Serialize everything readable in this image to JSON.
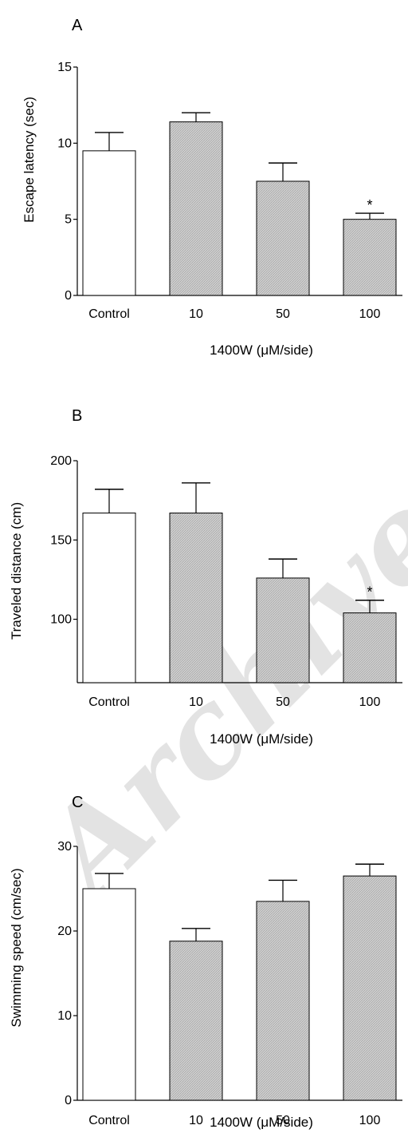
{
  "chart_data": [
    {
      "type": "bar",
      "panel": "A",
      "categories": [
        "Control",
        "10",
        "50",
        "100"
      ],
      "values": [
        9.5,
        11.4,
        7.5,
        5.0
      ],
      "errors": [
        1.2,
        0.6,
        1.2,
        0.4
      ],
      "significance": [
        "",
        "",
        "",
        "*"
      ],
      "bar_fills": [
        "#ffffff",
        "#c9c9c9",
        "#c9c9c9",
        "#c9c9c9"
      ],
      "xlabel": "1400W (μM/side)",
      "ylabel": "Escape latency (sec)",
      "ylim": [
        0,
        15
      ],
      "yticks": [
        0,
        5,
        10,
        15
      ]
    },
    {
      "type": "bar",
      "panel": "B",
      "categories": [
        "Control",
        "10",
        "50",
        "100"
      ],
      "values": [
        167,
        167,
        126,
        104
      ],
      "errors": [
        15,
        19,
        12,
        8
      ],
      "significance": [
        "",
        "",
        "",
        "*"
      ],
      "bar_fills": [
        "#ffffff",
        "#c9c9c9",
        "#c9c9c9",
        "#c9c9c9"
      ],
      "xlabel": "1400W (μM/side)",
      "ylabel": "Traveled distance (cm)",
      "ylim": [
        60,
        200
      ],
      "yticks": [
        100,
        150,
        200
      ]
    },
    {
      "type": "bar",
      "panel": "C",
      "categories": [
        "Control",
        "10",
        "50",
        "100"
      ],
      "values": [
        25.0,
        18.8,
        23.5,
        26.5
      ],
      "errors": [
        1.8,
        1.5,
        2.5,
        1.4
      ],
      "significance": [
        "",
        "",
        "",
        ""
      ],
      "bar_fills": [
        "#ffffff",
        "#c9c9c9",
        "#c9c9c9",
        "#c9c9c9"
      ],
      "xlabel": "1400W (μM/side)",
      "ylabel": "Swimming speed (cm/sec)",
      "ylim": [
        0,
        30
      ],
      "yticks": [
        0,
        10,
        20,
        30
      ]
    }
  ],
  "watermark_text": "Archive"
}
